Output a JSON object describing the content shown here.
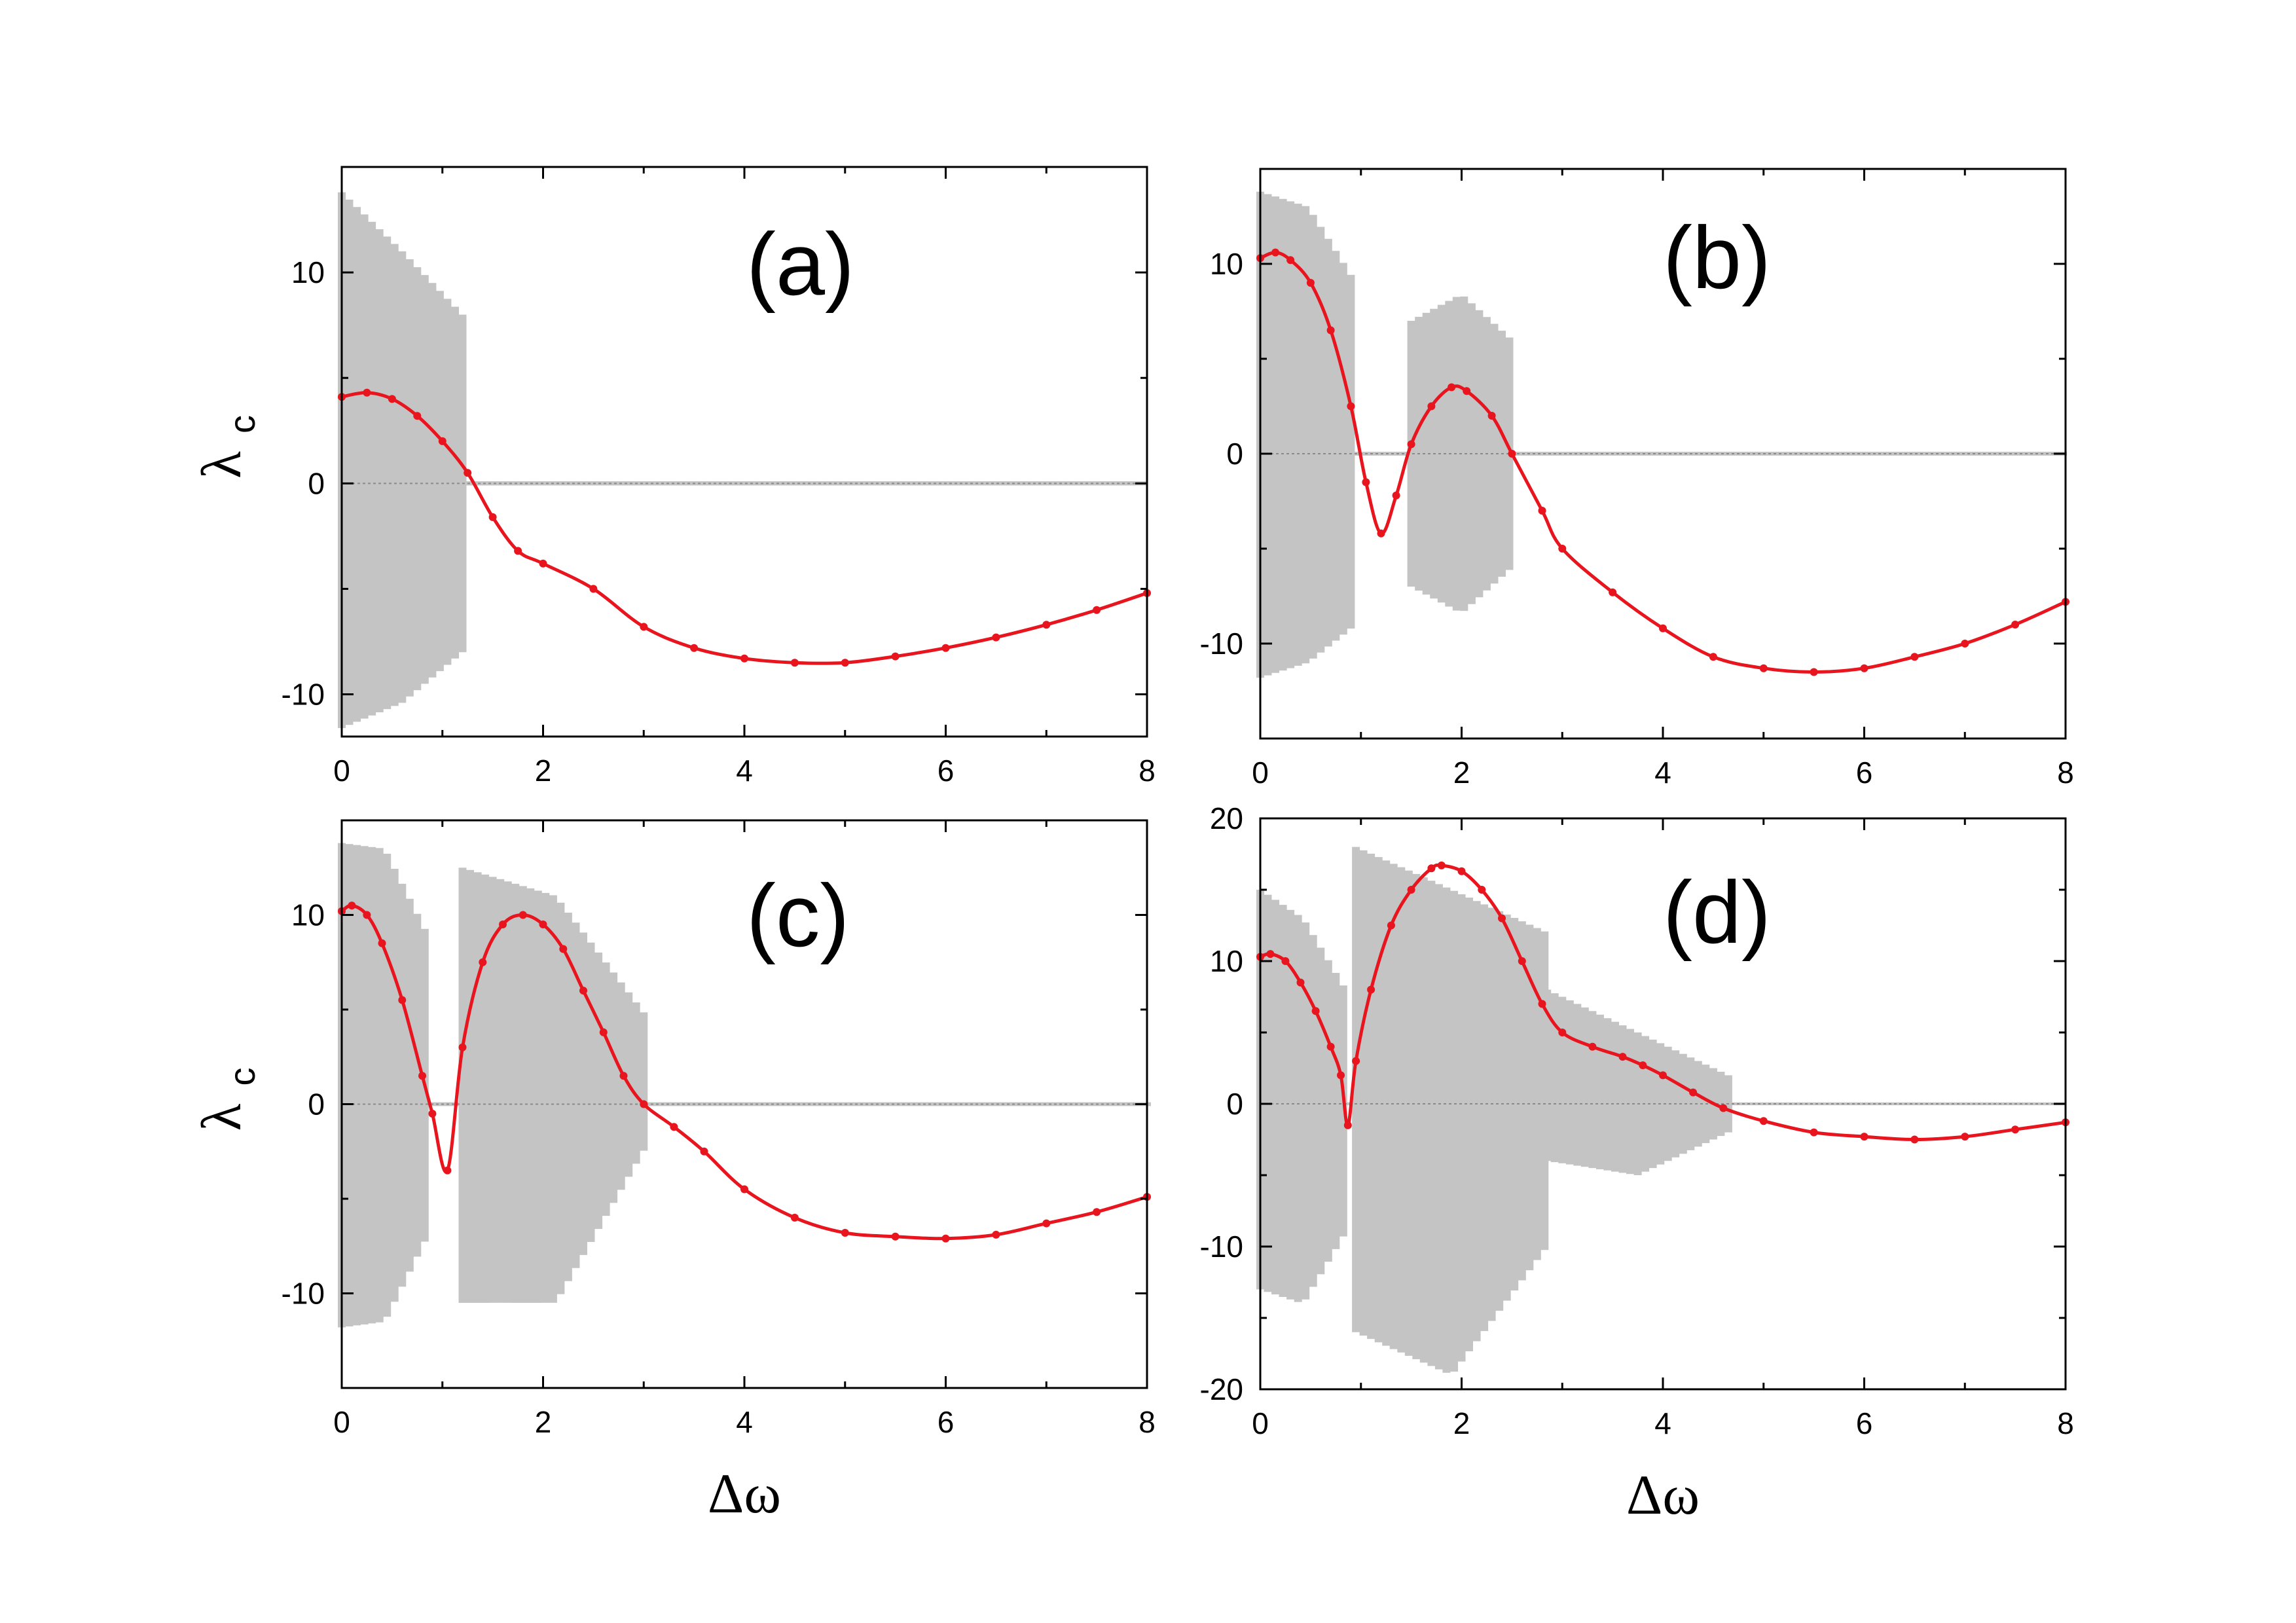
{
  "chart_data": [
    {
      "type": "line",
      "panel_label": "(a)",
      "xlim": [
        0,
        8
      ],
      "ylim": [
        -12,
        15
      ],
      "xticks": [
        "0",
        "2",
        "4",
        "6",
        "8"
      ],
      "xtick_values": [
        0,
        2,
        4,
        6,
        8
      ],
      "yticks": [
        "-10",
        "0",
        "10"
      ],
      "ytick_values": [
        -10,
        0,
        10
      ],
      "ylabel": "λ",
      "ylabel_sub": "c",
      "xlabel": "",
      "series": [
        {
          "name": "λc",
          "color": "#e8141e",
          "x": [
            0,
            0.25,
            0.5,
            0.75,
            1.0,
            1.25,
            1.5,
            1.75,
            2.0,
            2.5,
            3.0,
            3.5,
            4.0,
            4.5,
            5.0,
            5.5,
            6.0,
            6.5,
            7.0,
            7.5,
            8.0
          ],
          "y": [
            4.1,
            4.3,
            4.0,
            3.2,
            2.0,
            0.5,
            -1.6,
            -3.2,
            -3.8,
            -5.0,
            -6.8,
            -7.8,
            -8.3,
            -8.5,
            -8.5,
            -8.2,
            -7.8,
            -7.3,
            -6.7,
            -6.0,
            -5.2
          ]
        }
      ],
      "bands": {
        "color": "#c4c4c4",
        "note": "grey vertical range bars of the instantaneous value",
        "segments": [
          {
            "x0": 0.0,
            "x1": 1.2,
            "top": [
              13.8,
              11.0,
              8.0
            ],
            "bottom": [
              -11.6,
              -10.4,
              -8.0
            ]
          },
          {
            "x0": 1.2,
            "x1": 8.0,
            "top": [
              0.1,
              0.1,
              0.1
            ],
            "bottom": [
              -0.1,
              -0.1,
              -0.1
            ]
          }
        ]
      }
    },
    {
      "type": "line",
      "panel_label": "(b)",
      "xlim": [
        0,
        8
      ],
      "ylim": [
        -15,
        15
      ],
      "xticks": [
        "0",
        "2",
        "4",
        "6",
        "8"
      ],
      "xtick_values": [
        0,
        2,
        4,
        6,
        8
      ],
      "yticks": [
        "-10",
        "0",
        "10"
      ],
      "ytick_values": [
        -10,
        0,
        10
      ],
      "ylabel": "",
      "ylabel_sub": "",
      "xlabel": "",
      "series": [
        {
          "name": "λc",
          "color": "#e8141e",
          "x": [
            0,
            0.15,
            0.3,
            0.5,
            0.7,
            0.9,
            1.05,
            1.2,
            1.35,
            1.5,
            1.7,
            1.9,
            2.05,
            2.3,
            2.5,
            2.8,
            3.0,
            3.5,
            4.0,
            4.5,
            5.0,
            5.5,
            6.0,
            6.5,
            7.0,
            7.5,
            8.0
          ],
          "y": [
            10.3,
            10.6,
            10.2,
            9.0,
            6.5,
            2.5,
            -1.5,
            -4.2,
            -2.2,
            0.5,
            2.5,
            3.5,
            3.3,
            2.0,
            0.0,
            -3.0,
            -5.0,
            -7.3,
            -9.2,
            -10.7,
            -11.3,
            -11.5,
            -11.3,
            -10.7,
            -10.0,
            -9.0,
            -7.8
          ]
        }
      ],
      "bands": {
        "color": "#c4c4c4",
        "note": "grey vertical range bars of the instantaneous value",
        "segments": [
          {
            "x0": 0.0,
            "x1": 0.95,
            "top": [
              13.8,
              13.0,
              9.0
            ],
            "bottom": [
              -11.8,
              -11.0,
              -9.0
            ]
          },
          {
            "x0": 1.5,
            "x1": 2.5,
            "top": [
              7.0,
              8.4,
              6.0
            ],
            "bottom": [
              -7.0,
              -8.4,
              -6.0
            ]
          },
          {
            "x0": 0.95,
            "x1": 1.5,
            "top": [
              0.1,
              0.1,
              0.1
            ],
            "bottom": [
              -0.1,
              -0.1,
              -0.1
            ]
          },
          {
            "x0": 2.5,
            "x1": 8.0,
            "top": [
              0.1,
              0.1,
              0.1
            ],
            "bottom": [
              -0.1,
              -0.1,
              -0.1
            ]
          }
        ]
      }
    },
    {
      "type": "line",
      "panel_label": "(c)",
      "xlim": [
        0,
        8
      ],
      "ylim": [
        -15,
        15
      ],
      "xticks": [
        "0",
        "2",
        "4",
        "6",
        "8"
      ],
      "xtick_values": [
        0,
        2,
        4,
        6,
        8
      ],
      "yticks": [
        "-10",
        "0",
        "10"
      ],
      "ytick_values": [
        -10,
        0,
        10
      ],
      "ylabel": "λ",
      "ylabel_sub": "c",
      "xlabel": "Δω",
      "series": [
        {
          "name": "λc",
          "color": "#e8141e",
          "x": [
            0,
            0.1,
            0.25,
            0.4,
            0.6,
            0.8,
            0.9,
            1.05,
            1.2,
            1.4,
            1.6,
            1.8,
            2.0,
            2.2,
            2.4,
            2.6,
            2.8,
            3.0,
            3.3,
            3.6,
            4.0,
            4.5,
            5.0,
            5.5,
            6.0,
            6.5,
            7.0,
            7.5,
            8.0
          ],
          "y": [
            10.2,
            10.5,
            10.0,
            8.5,
            5.5,
            1.5,
            -0.5,
            -3.5,
            3.0,
            7.5,
            9.5,
            10.0,
            9.5,
            8.2,
            6.0,
            3.8,
            1.5,
            0.0,
            -1.2,
            -2.5,
            -4.5,
            -6.0,
            -6.8,
            -7.0,
            -7.1,
            -6.9,
            -6.3,
            -5.7,
            -4.9
          ]
        }
      ],
      "bands": {
        "color": "#c4c4c4",
        "note": "grey vertical range bars of the instantaneous value",
        "segments": [
          {
            "x0": 0.0,
            "x1": 0.85,
            "top": [
              13.8,
              13.5,
              9.0
            ],
            "bottom": [
              -11.8,
              -11.5,
              -7.0
            ]
          },
          {
            "x0": 1.2,
            "x1": 3.05,
            "top": [
              12.5,
              11.0,
              4.5
            ],
            "bottom": [
              -10.5,
              -10.5,
              -2.0
            ]
          },
          {
            "x0": 0.85,
            "x1": 1.2,
            "top": [
              0.1,
              0.1,
              0.1
            ],
            "bottom": [
              -0.1,
              -0.1,
              -0.1
            ]
          },
          {
            "x0": 3.05,
            "x1": 8.0,
            "top": [
              0.1,
              0.1,
              0.1
            ],
            "bottom": [
              -0.1,
              -0.1,
              -0.1
            ]
          }
        ]
      }
    },
    {
      "type": "line",
      "panel_label": "(d)",
      "xlim": [
        0,
        8
      ],
      "ylim": [
        -20,
        20
      ],
      "xticks": [
        "0",
        "2",
        "4",
        "6",
        "8"
      ],
      "xtick_values": [
        0,
        2,
        4,
        6,
        8
      ],
      "yticks": [
        "-20",
        "-10",
        "0",
        "10",
        "20"
      ],
      "ytick_values": [
        -20,
        -10,
        0,
        10,
        20
      ],
      "ylabel": "",
      "ylabel_sub": "",
      "xlabel": "Δω",
      "series": [
        {
          "name": "λc",
          "color": "#e8141e",
          "x": [
            0,
            0.1,
            0.25,
            0.4,
            0.55,
            0.7,
            0.8,
            0.87,
            0.95,
            1.1,
            1.3,
            1.5,
            1.7,
            1.8,
            2.0,
            2.2,
            2.4,
            2.6,
            2.8,
            3.0,
            3.3,
            3.6,
            3.8,
            4.0,
            4.3,
            4.6,
            5.0,
            5.5,
            6.0,
            6.5,
            7.0,
            7.5,
            8.0
          ],
          "y": [
            10.3,
            10.5,
            10.0,
            8.5,
            6.5,
            4.0,
            2.0,
            -1.5,
            3.0,
            8.0,
            12.5,
            15.0,
            16.5,
            16.7,
            16.3,
            15.0,
            13.0,
            10.0,
            7.0,
            5.0,
            4.0,
            3.3,
            2.7,
            2.0,
            0.8,
            -0.3,
            -1.2,
            -2.0,
            -2.3,
            -2.5,
            -2.3,
            -1.8,
            -1.3
          ]
        }
      ],
      "bands": {
        "color": "#c4c4c4",
        "note": "grey vertical range bars of the instantaneous value",
        "segments": [
          {
            "x0": 0.0,
            "x1": 0.85,
            "top": [
              15.0,
              13.0,
              8.0
            ],
            "bottom": [
              -13.0,
              -14.0,
              -9.0
            ]
          },
          {
            "x0": 0.95,
            "x1": 2.85,
            "top": [
              18.0,
              15.0,
              12.0
            ],
            "bottom": [
              -16.0,
              -19.0,
              -10.0
            ]
          },
          {
            "x0": 2.85,
            "x1": 4.65,
            "top": [
              8.0,
              5.0,
              2.0
            ],
            "bottom": [
              -4.0,
              -5.0,
              -2.0
            ]
          },
          {
            "x0": 0.85,
            "x1": 0.95,
            "top": [
              0.1,
              0.1,
              0.1
            ],
            "bottom": [
              -0.1,
              -0.1,
              -0.1
            ]
          },
          {
            "x0": 4.65,
            "x1": 8.0,
            "top": [
              0.1,
              0.1,
              0.1
            ],
            "bottom": [
              -0.1,
              -0.1,
              -0.1
            ]
          }
        ]
      }
    }
  ]
}
